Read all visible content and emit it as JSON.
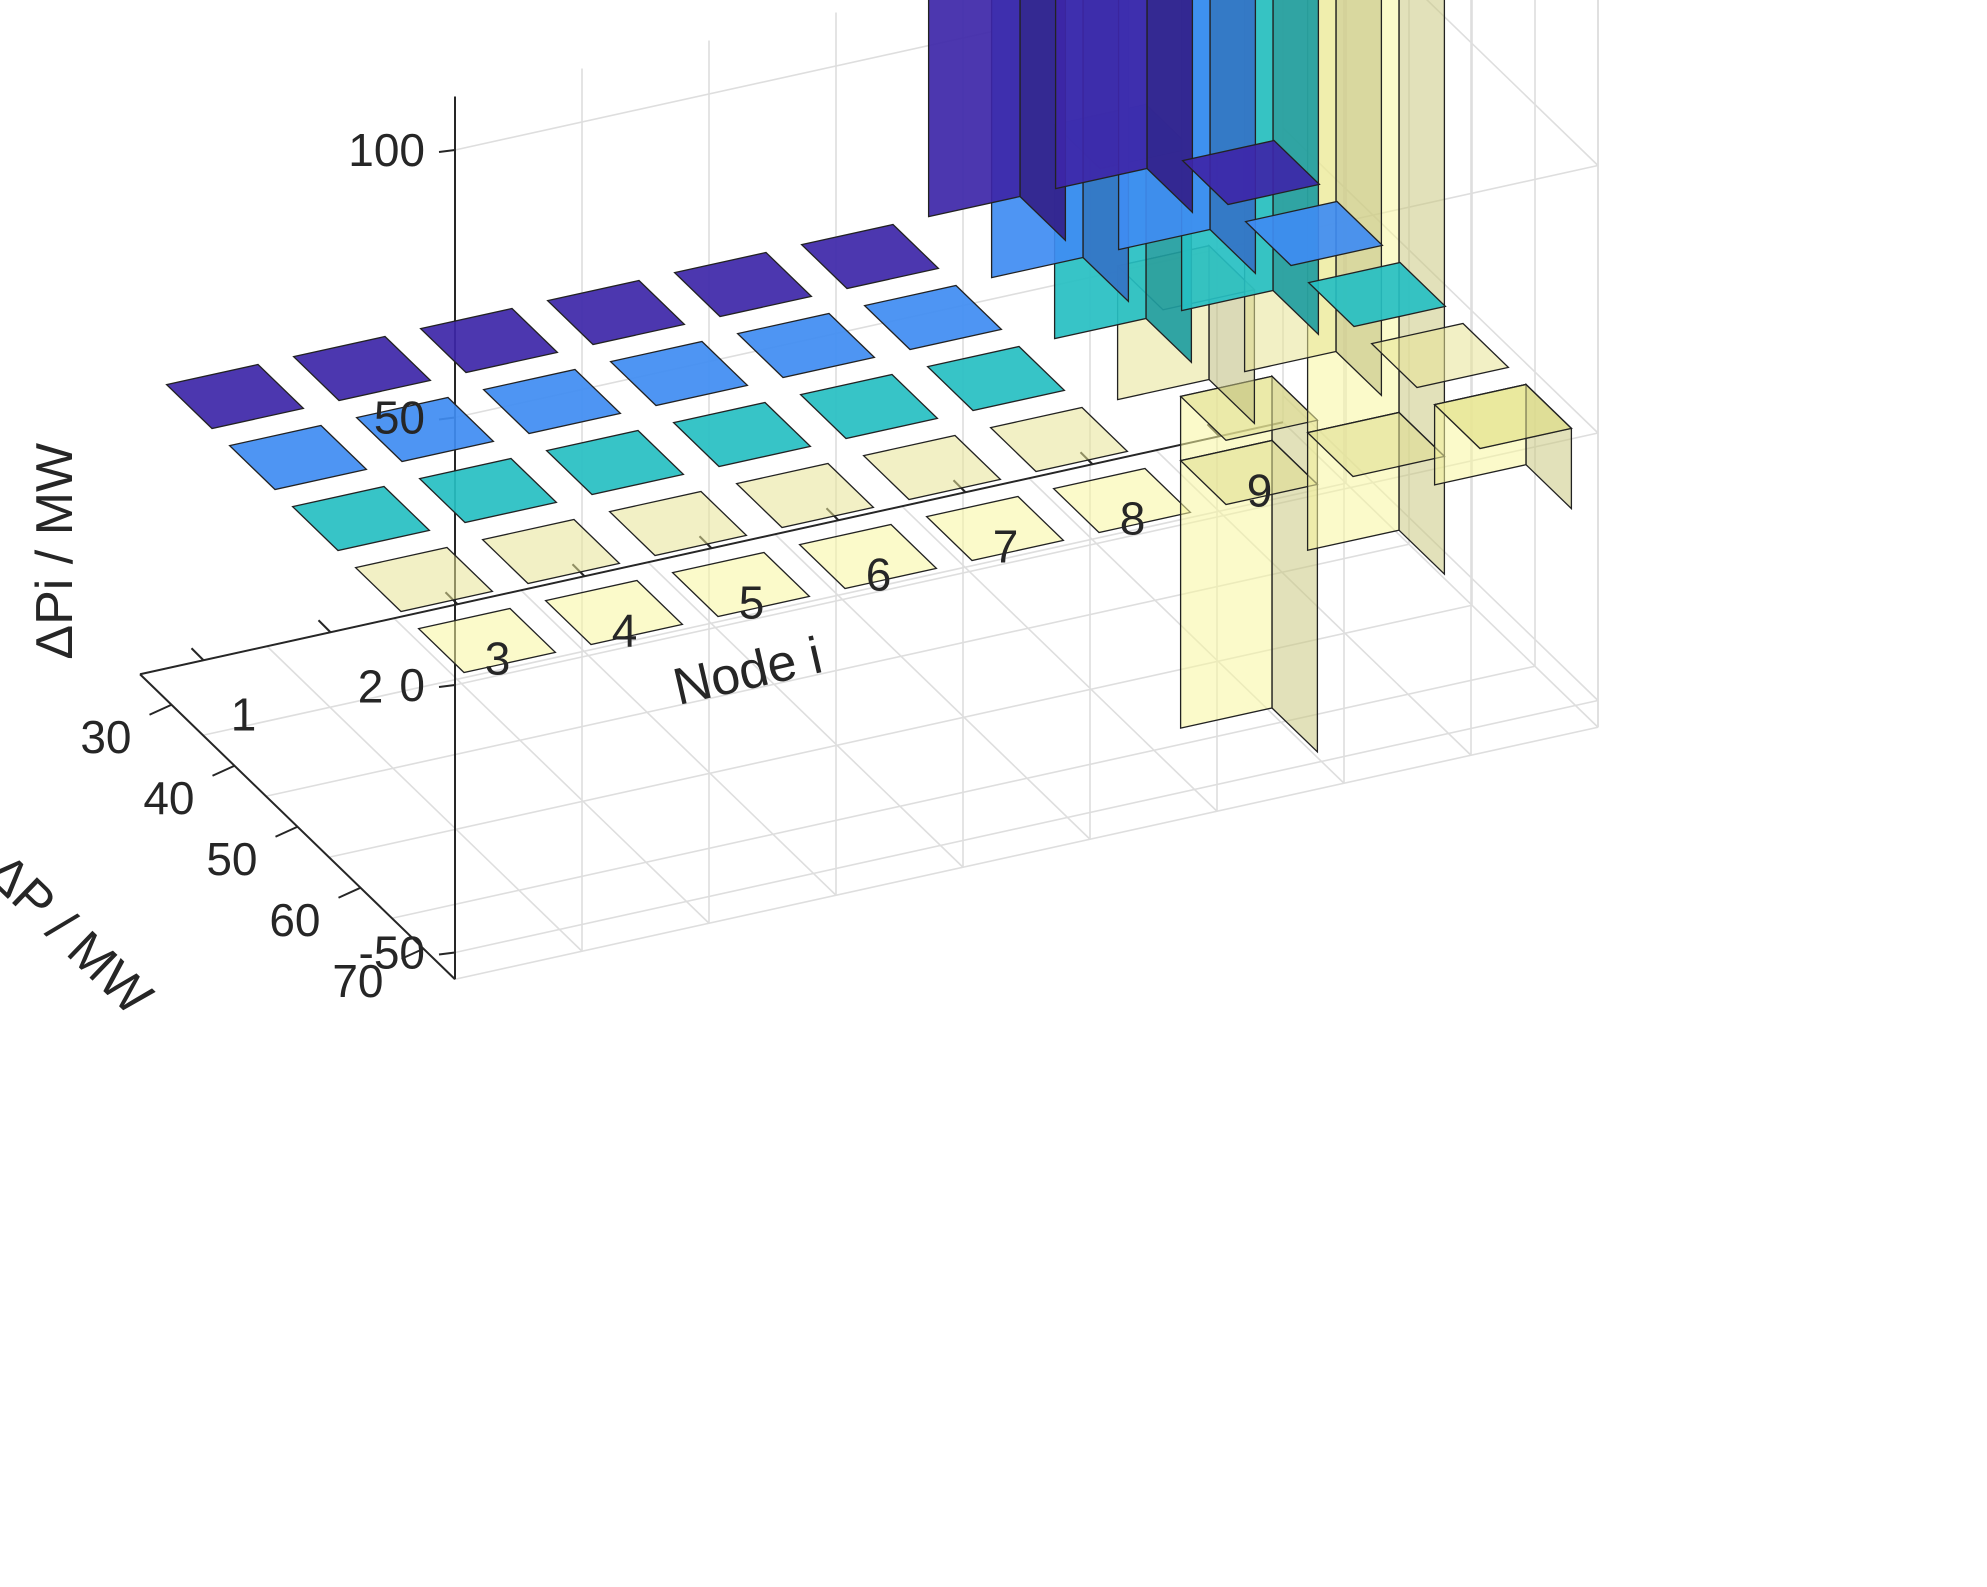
{
  "chart_data": {
    "type": "bar3",
    "x_axis": {
      "label": "Node i",
      "categories": [
        "1",
        "2",
        "3",
        "4",
        "5",
        "6",
        "7",
        "8",
        "9"
      ]
    },
    "y_axis": {
      "label": "ΔP / MW",
      "categories": [
        "30",
        "40",
        "50",
        "60",
        "70"
      ]
    },
    "z_axis": {
      "label": "ΔPi / MW",
      "ticks": [
        -50,
        0,
        50,
        100
      ],
      "zlim": [
        -55,
        110
      ]
    },
    "grid": true,
    "colors": {
      "30": "#3d26a8",
      "40": "#3f8cf2",
      "50": "#26bfc2",
      "60": "#e8e496",
      "70": "#f7f59e"
    },
    "series": [
      {
        "name": "30",
        "values": [
          0,
          0,
          0,
          0,
          0,
          0,
          105,
          90,
          0
        ]
      },
      {
        "name": "40",
        "values": [
          0,
          0,
          0,
          0,
          0,
          0,
          70,
          90,
          0
        ]
      },
      {
        "name": "50",
        "values": [
          0,
          0,
          0,
          0,
          0,
          0,
          40,
          90,
          0
        ]
      },
      {
        "name": "60",
        "values": [
          0,
          0,
          0,
          0,
          0,
          0,
          25,
          90,
          0
        ]
      },
      {
        "name": "70",
        "values": [
          0,
          0,
          0,
          0,
          0,
          0,
          12,
          90,
          0
        ]
      }
    ],
    "negative_bars": [
      {
        "node": "7",
        "dp": "70",
        "value": -50
      },
      {
        "node": "8",
        "dp": "70",
        "value": -22
      },
      {
        "node": "9",
        "dp": "70",
        "value": -15
      }
    ]
  }
}
